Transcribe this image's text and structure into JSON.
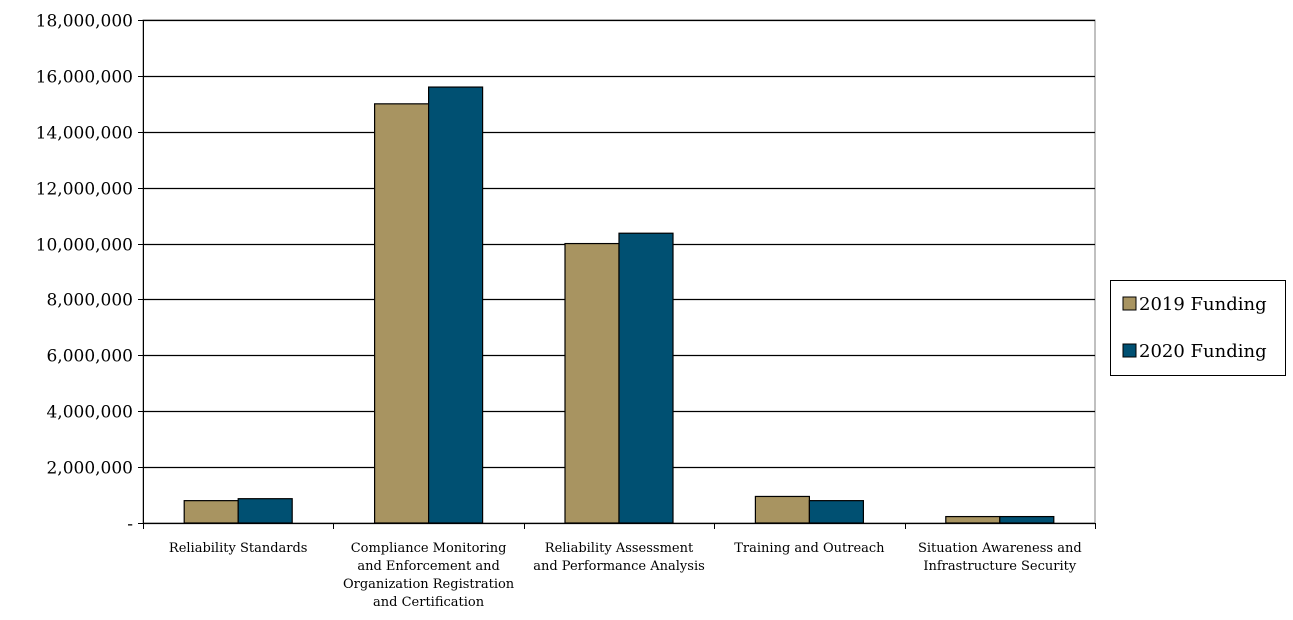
{
  "chart_data": {
    "type": "bar",
    "title": "",
    "xlabel": "",
    "ylabel": "",
    "ylim": [
      0,
      18000000
    ],
    "yticks": [
      0,
      2000000,
      4000000,
      6000000,
      8000000,
      10000000,
      12000000,
      14000000,
      16000000,
      18000000
    ],
    "ytick_labels": [
      "-",
      "2,000,000",
      "4,000,000",
      "6,000,000",
      "8,000,000",
      "10,000,000",
      "12,000,000",
      "14,000,000",
      "16,000,000",
      "18,000,000"
    ],
    "grid": true,
    "legend_position": "right",
    "categories": [
      "Reliability Standards",
      "Compliance Monitoring and Enforcement and Organization Registration and Certification",
      "Reliability Assessment and Performance Analysis",
      "Training and Outreach",
      "Situation Awareness and Infrastructure Security"
    ],
    "category_label_lines": [
      [
        "Reliability Standards"
      ],
      [
        "Compliance Monitoring",
        "and Enforcement and",
        "Organization Registration",
        "and Certification"
      ],
      [
        "Reliability Assessment",
        "and Performance Analysis"
      ],
      [
        "Training and Outreach"
      ],
      [
        "Situation Awareness and",
        "Infrastructure Security"
      ]
    ],
    "series": [
      {
        "name": "2019 Funding",
        "color": "#A89461",
        "values": [
          800000,
          15000000,
          10000000,
          950000,
          230000
        ]
      },
      {
        "name": "2020 Funding",
        "color": "#005072",
        "values": [
          870000,
          15600000,
          10370000,
          800000,
          230000
        ]
      }
    ]
  }
}
